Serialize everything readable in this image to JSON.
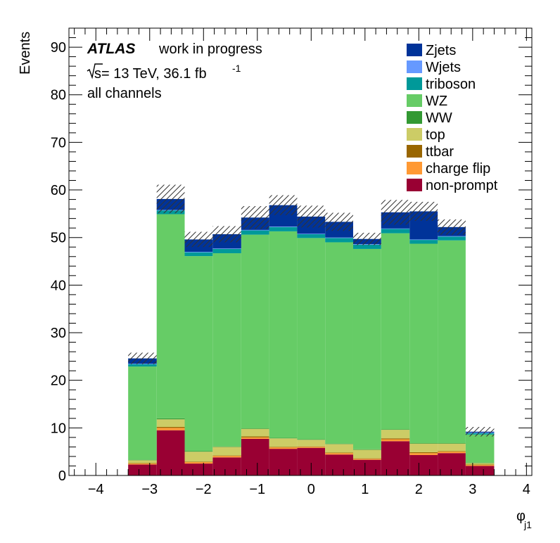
{
  "chart_data": {
    "type": "bar",
    "stacked": true,
    "x_label": "φ",
    "x_label_subscript": "j1",
    "y_label": "Events",
    "xlim": [
      -4.5,
      4.1
    ],
    "ylim": [
      0,
      94
    ],
    "x_ticks": [
      -4,
      -3,
      -2,
      -1,
      0,
      1,
      2,
      3,
      4
    ],
    "y_ticks": [
      0,
      10,
      20,
      30,
      40,
      50,
      60,
      70,
      80,
      90
    ],
    "bin_edges": [
      -3.4,
      -2.87,
      -2.35,
      -1.83,
      -1.3,
      -0.78,
      -0.26,
      0.26,
      0.78,
      1.3,
      1.83,
      2.35,
      2.87,
      3.4
    ],
    "series": [
      {
        "name": "non-prompt",
        "color": "#990033",
        "values": [
          2.3,
          9.5,
          2.5,
          3.8,
          7.7,
          5.6,
          5.8,
          4.4,
          3.3,
          7.2,
          4.3,
          4.7,
          2.0
        ]
      },
      {
        "name": "charge flip",
        "color": "#ff9933",
        "values": [
          0.2,
          0.5,
          0.3,
          0.3,
          0.3,
          0.3,
          0.2,
          0.3,
          0.2,
          0.4,
          0.4,
          0.3,
          0.2
        ]
      },
      {
        "name": "ttbar",
        "color": "#996600",
        "values": [
          0.1,
          0.2,
          0.1,
          0.1,
          0.2,
          0.1,
          0.1,
          0.1,
          0.1,
          0.2,
          0.2,
          0.1,
          0.1
        ]
      },
      {
        "name": "top",
        "color": "#cccc66",
        "values": [
          0.6,
          1.6,
          2.1,
          1.8,
          1.6,
          1.8,
          1.4,
          1.8,
          1.8,
          1.8,
          1.8,
          1.6,
          0.3
        ]
      },
      {
        "name": "WW",
        "color": "#339933",
        "values": [
          0.1,
          0.2,
          0.1,
          0.1,
          0.1,
          0.1,
          0.1,
          0.1,
          0.1,
          0.1,
          0.1,
          0.1,
          0.1
        ]
      },
      {
        "name": "WZ",
        "color": "#66cc66",
        "values": [
          19.6,
          42.9,
          41.0,
          40.6,
          40.7,
          43.4,
          42.3,
          42.3,
          42.1,
          41.2,
          41.9,
          42.6,
          5.9
        ]
      },
      {
        "name": "triboson",
        "color": "#009999",
        "values": [
          0.5,
          0.8,
          0.8,
          0.9,
          0.9,
          0.9,
          0.8,
          0.9,
          0.9,
          0.9,
          0.8,
          0.8,
          0.3
        ]
      },
      {
        "name": "Wjets",
        "color": "#6699ff",
        "values": [
          0.1,
          0.1,
          0.1,
          0.1,
          0.1,
          0.1,
          0.1,
          0.1,
          0.1,
          0.1,
          0.1,
          0.1,
          0.1
        ]
      },
      {
        "name": "Zjets",
        "color": "#003399",
        "values": [
          1.1,
          2.3,
          2.6,
          3.0,
          2.6,
          4.5,
          3.6,
          3.3,
          1.1,
          3.4,
          5.9,
          1.9,
          0.2
        ]
      }
    ],
    "uncertainty_band": [
      1.2,
      3.0,
      1.6,
      1.7,
      2.4,
      2.1,
      2.3,
      1.9,
      1.3,
      2.6,
      2.0,
      1.6,
      1.0
    ],
    "legend": {
      "placement": "top-right",
      "order": [
        "Zjets",
        "Wjets",
        "triboson",
        "WZ",
        "WW",
        "top",
        "ttbar",
        "charge flip",
        "non-prompt"
      ]
    },
    "annotations": {
      "experiment": "ATLAS",
      "status": "work in progress",
      "sqrt_s": "s",
      "energy_lumi": " = 13 TeV, 36.1 fb",
      "lumi_exponent": "-1",
      "channel": "all channels"
    }
  }
}
